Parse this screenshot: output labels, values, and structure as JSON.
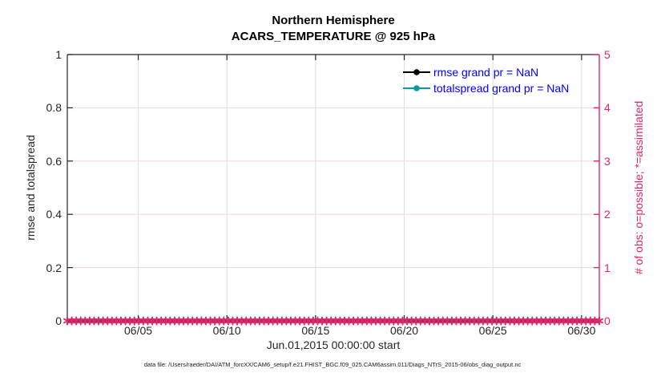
{
  "figure": {
    "title_line1": "Northern Hemisphere",
    "title_line2": "ACARS_TEMPERATURE @ 925 hPa",
    "xlabel": "Jun.01,2015 00:00:00 start",
    "caption": "data file: /Users/raeder/DAI/ATM_forcXX/CAM6_setup/f.e21.FHIST_BGC.f09_025.CAM6assim.011/Diags_NTrS_2015-06/obs_diag_output.nc"
  },
  "colors": {
    "obs_pink": "#e02568",
    "grid_pink": "#f6d3e1",
    "grid_gray": "#dedede",
    "axis_black": "#262626",
    "teal": "#0f9b9b",
    "legend_blue": "#0000ff"
  },
  "chart_data": {
    "type": "line",
    "title": [
      "Northern Hemisphere",
      "ACARS_TEMPERATURE @ 925 hPa"
    ],
    "xlabel": "Jun.01,2015 00:00:00 start",
    "x_tick_labels": [
      "06/05",
      "06/10",
      "06/15",
      "06/20",
      "06/25",
      "06/30"
    ],
    "x_tick_days": [
      4,
      9,
      14,
      19,
      24,
      29
    ],
    "x_range_days": [
      0,
      30
    ],
    "left_axis": {
      "label": "rmse and totalspread",
      "ticks": [
        0,
        0.2,
        0.4,
        0.6,
        0.8,
        1
      ],
      "range": [
        0,
        1
      ]
    },
    "right_axis": {
      "label": "# of obs: o=possible; *=assimilated",
      "ticks": [
        0,
        1,
        2,
        3,
        4,
        5
      ],
      "range": [
        0,
        5
      ]
    },
    "grid": true,
    "legend_position": "upper-right-inside",
    "series": [
      {
        "name": "rmse",
        "legend": "rmse grand pr = NaN",
        "color": "#000000",
        "marker": "filled-circle",
        "values": "NaN",
        "points_plotted": 0
      },
      {
        "name": "totalspread",
        "legend": "totalspread grand pr = NaN",
        "color": "#0f9b9b",
        "marker": "filled-circle",
        "values": "NaN",
        "points_plotted": 0
      },
      {
        "name": "assimilated_obs_count",
        "legend": null,
        "color": "#e02568",
        "marker": "asterisk",
        "y_constant": 0,
        "n_points": 120
      }
    ]
  }
}
